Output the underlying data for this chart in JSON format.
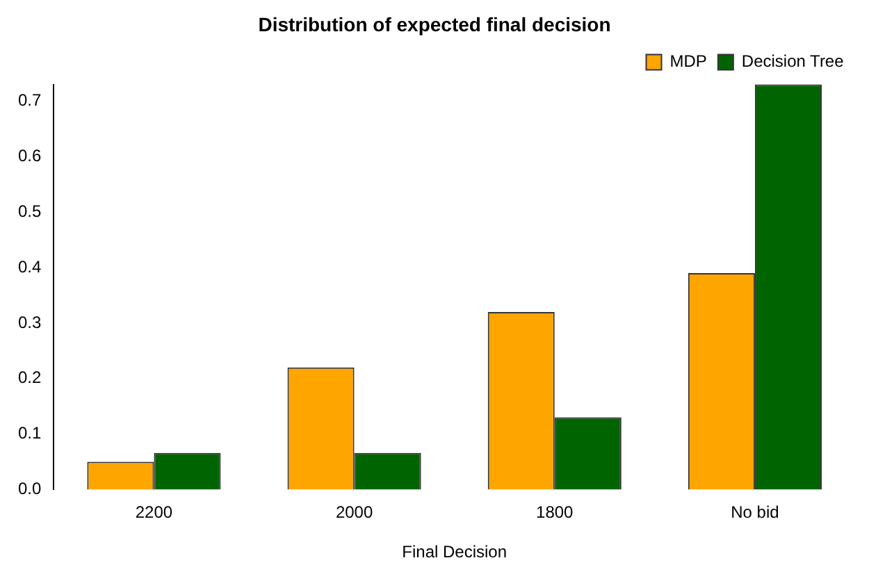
{
  "chart_data": {
    "type": "bar",
    "title": "Distribution of expected final decision",
    "xlabel": "Final Decision",
    "categories": [
      "2200",
      "2000",
      "1800",
      "No bid"
    ],
    "series": [
      {
        "name": "MDP",
        "color": "#ffa500",
        "values": [
          0.05,
          0.22,
          0.32,
          0.39
        ]
      },
      {
        "name": "Decision Tree",
        "color": "#006400",
        "values": [
          0.066,
          0.066,
          0.13,
          0.73
        ]
      }
    ],
    "ylim": [
      0,
      0.73
    ],
    "yticks": [
      {
        "value": 0,
        "label": "0.0"
      },
      0.1,
      0.2,
      0.3,
      0.4,
      0.5,
      0.6,
      0.7
    ],
    "grid": false,
    "legend": "top right"
  }
}
